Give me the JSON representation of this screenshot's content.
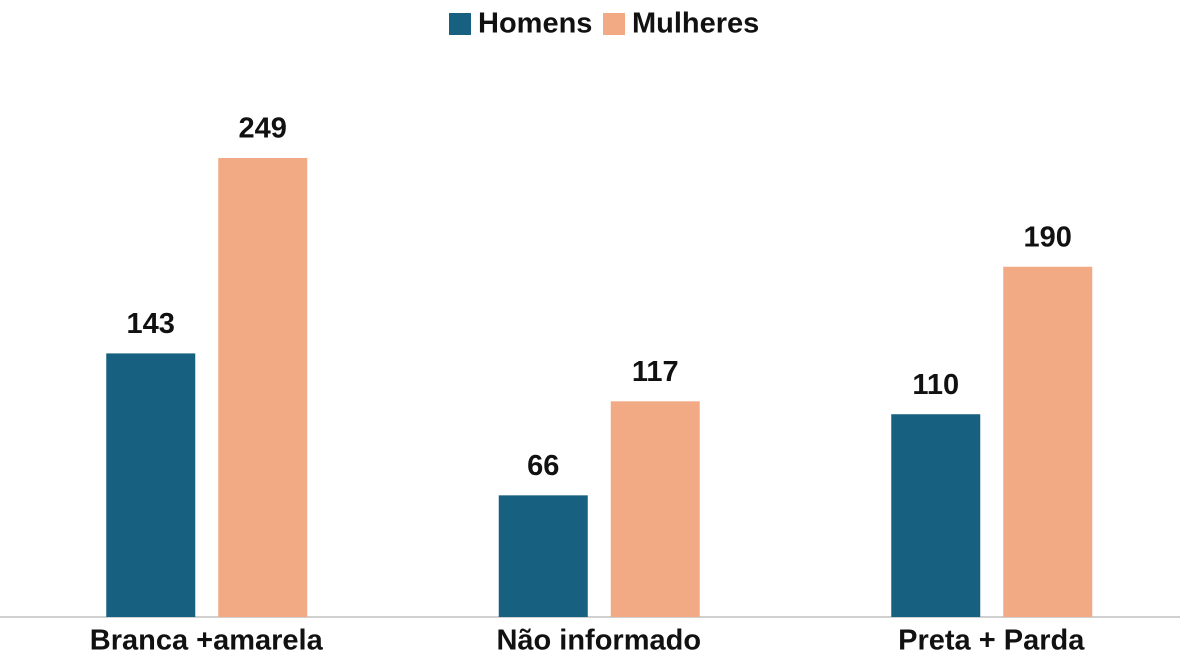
{
  "chart_data": {
    "type": "bar",
    "categories": [
      "Branca +amarela",
      "Não informado",
      "Preta + Parda"
    ],
    "series": [
      {
        "name": "Homens",
        "color": "#17607f",
        "values": [
          143,
          66,
          110
        ]
      },
      {
        "name": "Mulheres",
        "color": "#f2aa84",
        "values": [
          249,
          117,
          190
        ]
      }
    ],
    "ylim": [
      0,
      300
    ],
    "legend": "top"
  }
}
